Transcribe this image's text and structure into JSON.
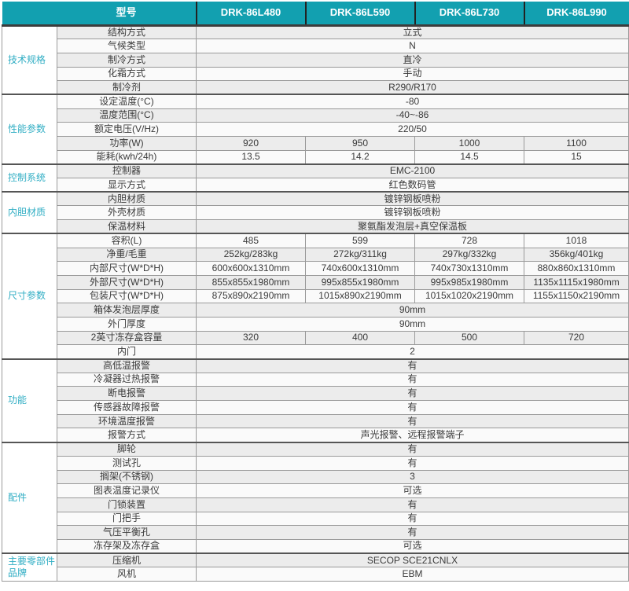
{
  "header": {
    "model_label": "型号",
    "models": [
      "DRK-86L480",
      "DRK-86L590",
      "DRK-86L730",
      "DRK-86L990"
    ]
  },
  "sections": [
    {
      "name": "技术规格",
      "rows": [
        {
          "label": "结构方式",
          "value": "立式"
        },
        {
          "label": "气候类型",
          "value": "N"
        },
        {
          "label": "制冷方式",
          "value": "直冷"
        },
        {
          "label": "化霜方式",
          "value": "手动"
        },
        {
          "label": "制冷剂",
          "value": "R290/R170"
        }
      ]
    },
    {
      "name": "性能参数",
      "rows": [
        {
          "label": "设定温度(°C)",
          "value": "-80"
        },
        {
          "label": "温度范围(°C)",
          "value": "-40~-86"
        },
        {
          "label": "额定电压(V/Hz)",
          "value": "220/50"
        },
        {
          "label": "功率(W)",
          "values": [
            "920",
            "950",
            "1000",
            "1100"
          ]
        },
        {
          "label": "能耗(kwh/24h)",
          "values": [
            "13.5",
            "14.2",
            "14.5",
            "15"
          ]
        }
      ]
    },
    {
      "name": "控制系统",
      "rows": [
        {
          "label": "控制器",
          "value": "EMC-2100"
        },
        {
          "label": "显示方式",
          "value": "红色数码管"
        }
      ]
    },
    {
      "name": "内胆材质",
      "rows": [
        {
          "label": "内胆材质",
          "value": "镀锌钢板喷粉"
        },
        {
          "label": "外壳材质",
          "value": "镀锌钢板喷粉"
        },
        {
          "label": "保温材料",
          "value": "聚氨酯发泡层+真空保温板"
        }
      ]
    },
    {
      "name": "尺寸参数",
      "rows": [
        {
          "label": "容积(L)",
          "values": [
            "485",
            "599",
            "728",
            "1018"
          ]
        },
        {
          "label": "净重/毛重",
          "values": [
            "252kg/283kg",
            "272kg/311kg",
            "297kg/332kg",
            "356kg/401kg"
          ]
        },
        {
          "label": "内部尺寸(W*D*H)",
          "values": [
            "600x600x1310mm",
            "740x600x1310mm",
            "740x730x1310mm",
            "880x860x1310mm"
          ]
        },
        {
          "label": "外部尺寸(W*D*H)",
          "values": [
            "855x855x1980mm",
            "995x855x1980mm",
            "995x985x1980mm",
            "1135x1115x1980mm"
          ]
        },
        {
          "label": "包装尺寸(W*D*H)",
          "values": [
            "875x890x2190mm",
            "1015x890x2190mm",
            "1015x1020x2190mm",
            "1155x1150x2190mm"
          ]
        },
        {
          "label": "箱体发泡层厚度",
          "value": "90mm"
        },
        {
          "label": "外门厚度",
          "value": "90mm"
        },
        {
          "label": "2英寸冻存盒容量",
          "values": [
            "320",
            "400",
            "500",
            "720"
          ]
        },
        {
          "label": "内门",
          "value": "2"
        }
      ]
    },
    {
      "name": "功能",
      "rows": [
        {
          "label": "高低温报警",
          "value": "有"
        },
        {
          "label": "冷凝器过热报警",
          "value": "有"
        },
        {
          "label": "断电报警",
          "value": "有"
        },
        {
          "label": "传感器故障报警",
          "value": "有"
        },
        {
          "label": "环境温度报警",
          "value": "有"
        },
        {
          "label": "报警方式",
          "value": "声光报警、远程报警端子"
        }
      ]
    },
    {
      "name": "配件",
      "rows": [
        {
          "label": "脚轮",
          "value": "有"
        },
        {
          "label": "测试孔",
          "value": "有"
        },
        {
          "label": "搁架(不锈钢)",
          "value": "3"
        },
        {
          "label": "图表温度记录仪",
          "value": "可选"
        },
        {
          "label": "门锁装置",
          "value": "有"
        },
        {
          "label": "门把手",
          "value": "有"
        },
        {
          "label": "气压平衡孔",
          "value": "有"
        },
        {
          "label": "冻存架及冻存盒",
          "value": "可选"
        }
      ]
    },
    {
      "name": "主要零部件品牌",
      "rows": [
        {
          "label": "压缩机",
          "value": "SECOP SCE21CNLX"
        },
        {
          "label": "风机",
          "value": "EBM"
        }
      ]
    }
  ],
  "colors": {
    "header_bg": "#12a0b0",
    "header_text": "#ffffff",
    "category_text": "#31aec4",
    "row_alt": "#ececec",
    "row_base": "#fafafa",
    "border_dark": "#555555",
    "border_light": "#9a9a9a",
    "cell_text": "#3a3a3a"
  }
}
